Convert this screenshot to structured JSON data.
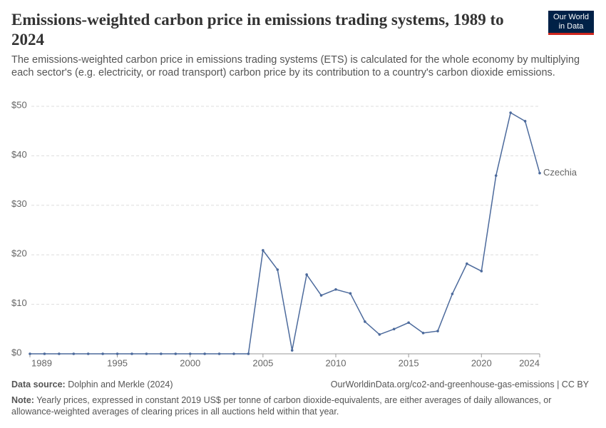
{
  "chart_data": {
    "type": "line",
    "title": "Emissions-weighted carbon price in emissions trading systems, 1989 to 2024",
    "subtitle": "The emissions-weighted carbon price in emissions trading systems (ETS) is calculated for the whole economy by multiplying each sector's (e.g. electricity, or road transport) carbon price by its contribution to a country's carbon dioxide emissions.",
    "logo": [
      "Our World",
      "in Data"
    ],
    "x": [
      1989,
      1990,
      1991,
      1992,
      1993,
      1994,
      1995,
      1996,
      1997,
      1998,
      1999,
      2000,
      2001,
      2002,
      2003,
      2004,
      2005,
      2006,
      2007,
      2008,
      2009,
      2010,
      2011,
      2012,
      2013,
      2014,
      2015,
      2016,
      2017,
      2018,
      2019,
      2020,
      2021,
      2022,
      2023,
      2024
    ],
    "series": [
      {
        "name": "Czechia",
        "color": "#4c6a9c",
        "values": [
          0,
          0,
          0,
          0,
          0,
          0,
          0,
          0,
          0,
          0,
          0,
          0,
          0,
          0,
          0,
          0,
          20.9,
          17.0,
          0.7,
          16.0,
          11.8,
          13.0,
          12.2,
          6.5,
          3.9,
          5.0,
          6.3,
          4.2,
          4.6,
          12.1,
          18.2,
          16.7,
          36.0,
          48.7,
          47.0,
          36.5
        ]
      }
    ],
    "xlim": [
      1989,
      2024
    ],
    "xticks": [
      1989,
      1995,
      2000,
      2005,
      2010,
      2015,
      2020,
      2024
    ],
    "ylim": [
      0,
      50
    ],
    "yticks": [
      {
        "value": 0,
        "label": "$0"
      },
      {
        "value": 10,
        "label": "$10"
      },
      {
        "value": 20,
        "label": "$20"
      },
      {
        "value": 30,
        "label": "$30"
      },
      {
        "value": 40,
        "label": "$40"
      },
      {
        "value": 50,
        "label": "$50"
      }
    ],
    "grid": true,
    "source_label": "Data source:",
    "source": "Dolphin and Merkle (2024)",
    "url": "OurWorldinData.org/co2-and-greenhouse-gas-emissions | CC BY",
    "note_label": "Note:",
    "note": "Yearly prices, expressed in constant 2019 US$ per tonne of carbon dioxide-equivalents, are either averages of daily allowances, or allowance-weighted averages of clearing prices in all auctions held within that year."
  }
}
